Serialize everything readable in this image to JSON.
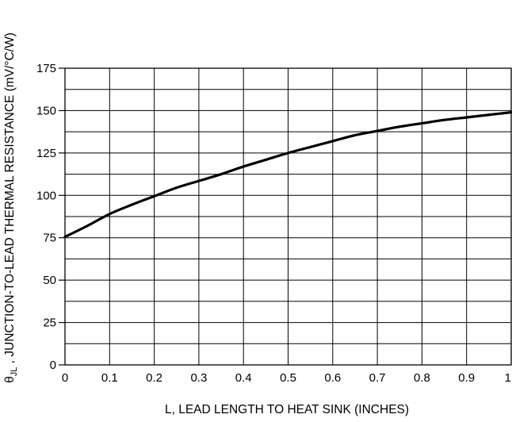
{
  "chart_data": {
    "type": "line",
    "xlabel": "L, LEAD LENGTH TO HEAT SINK (INCHES)",
    "ylabel_symbol": "θ",
    "ylabel_subscript": "JL",
    "ylabel_rest": " , JUNCTION-TO-LEAD THERMAL RESISTANCE (mV/°C/W)",
    "xlim": [
      0,
      1
    ],
    "ylim": [
      0,
      175
    ],
    "x_ticks": [
      "0",
      "0.1",
      "0.2",
      "0.3",
      "0.4",
      "0.5",
      "0.6",
      "0.7",
      "0.8",
      "0.9",
      "1"
    ],
    "y_ticks": [
      "0",
      "25",
      "50",
      "75",
      "100",
      "125",
      "150",
      "175"
    ],
    "grid": true,
    "series": [
      {
        "x": [
          0,
          0.05,
          0.1,
          0.15,
          0.2,
          0.25,
          0.3,
          0.35,
          0.4,
          0.45,
          0.5,
          0.55,
          0.6,
          0.65,
          0.7,
          0.75,
          0.8,
          0.85,
          0.9,
          0.95,
          1.0
        ],
        "y": [
          75.5,
          82,
          89,
          94.5,
          99.5,
          104.5,
          108.5,
          112.5,
          117,
          121,
          125,
          128.5,
          132,
          135.5,
          138,
          140.5,
          142.5,
          144.5,
          146,
          147.5,
          149
        ]
      }
    ],
    "colors": {
      "line": "#000000",
      "grid": "#000000"
    }
  }
}
